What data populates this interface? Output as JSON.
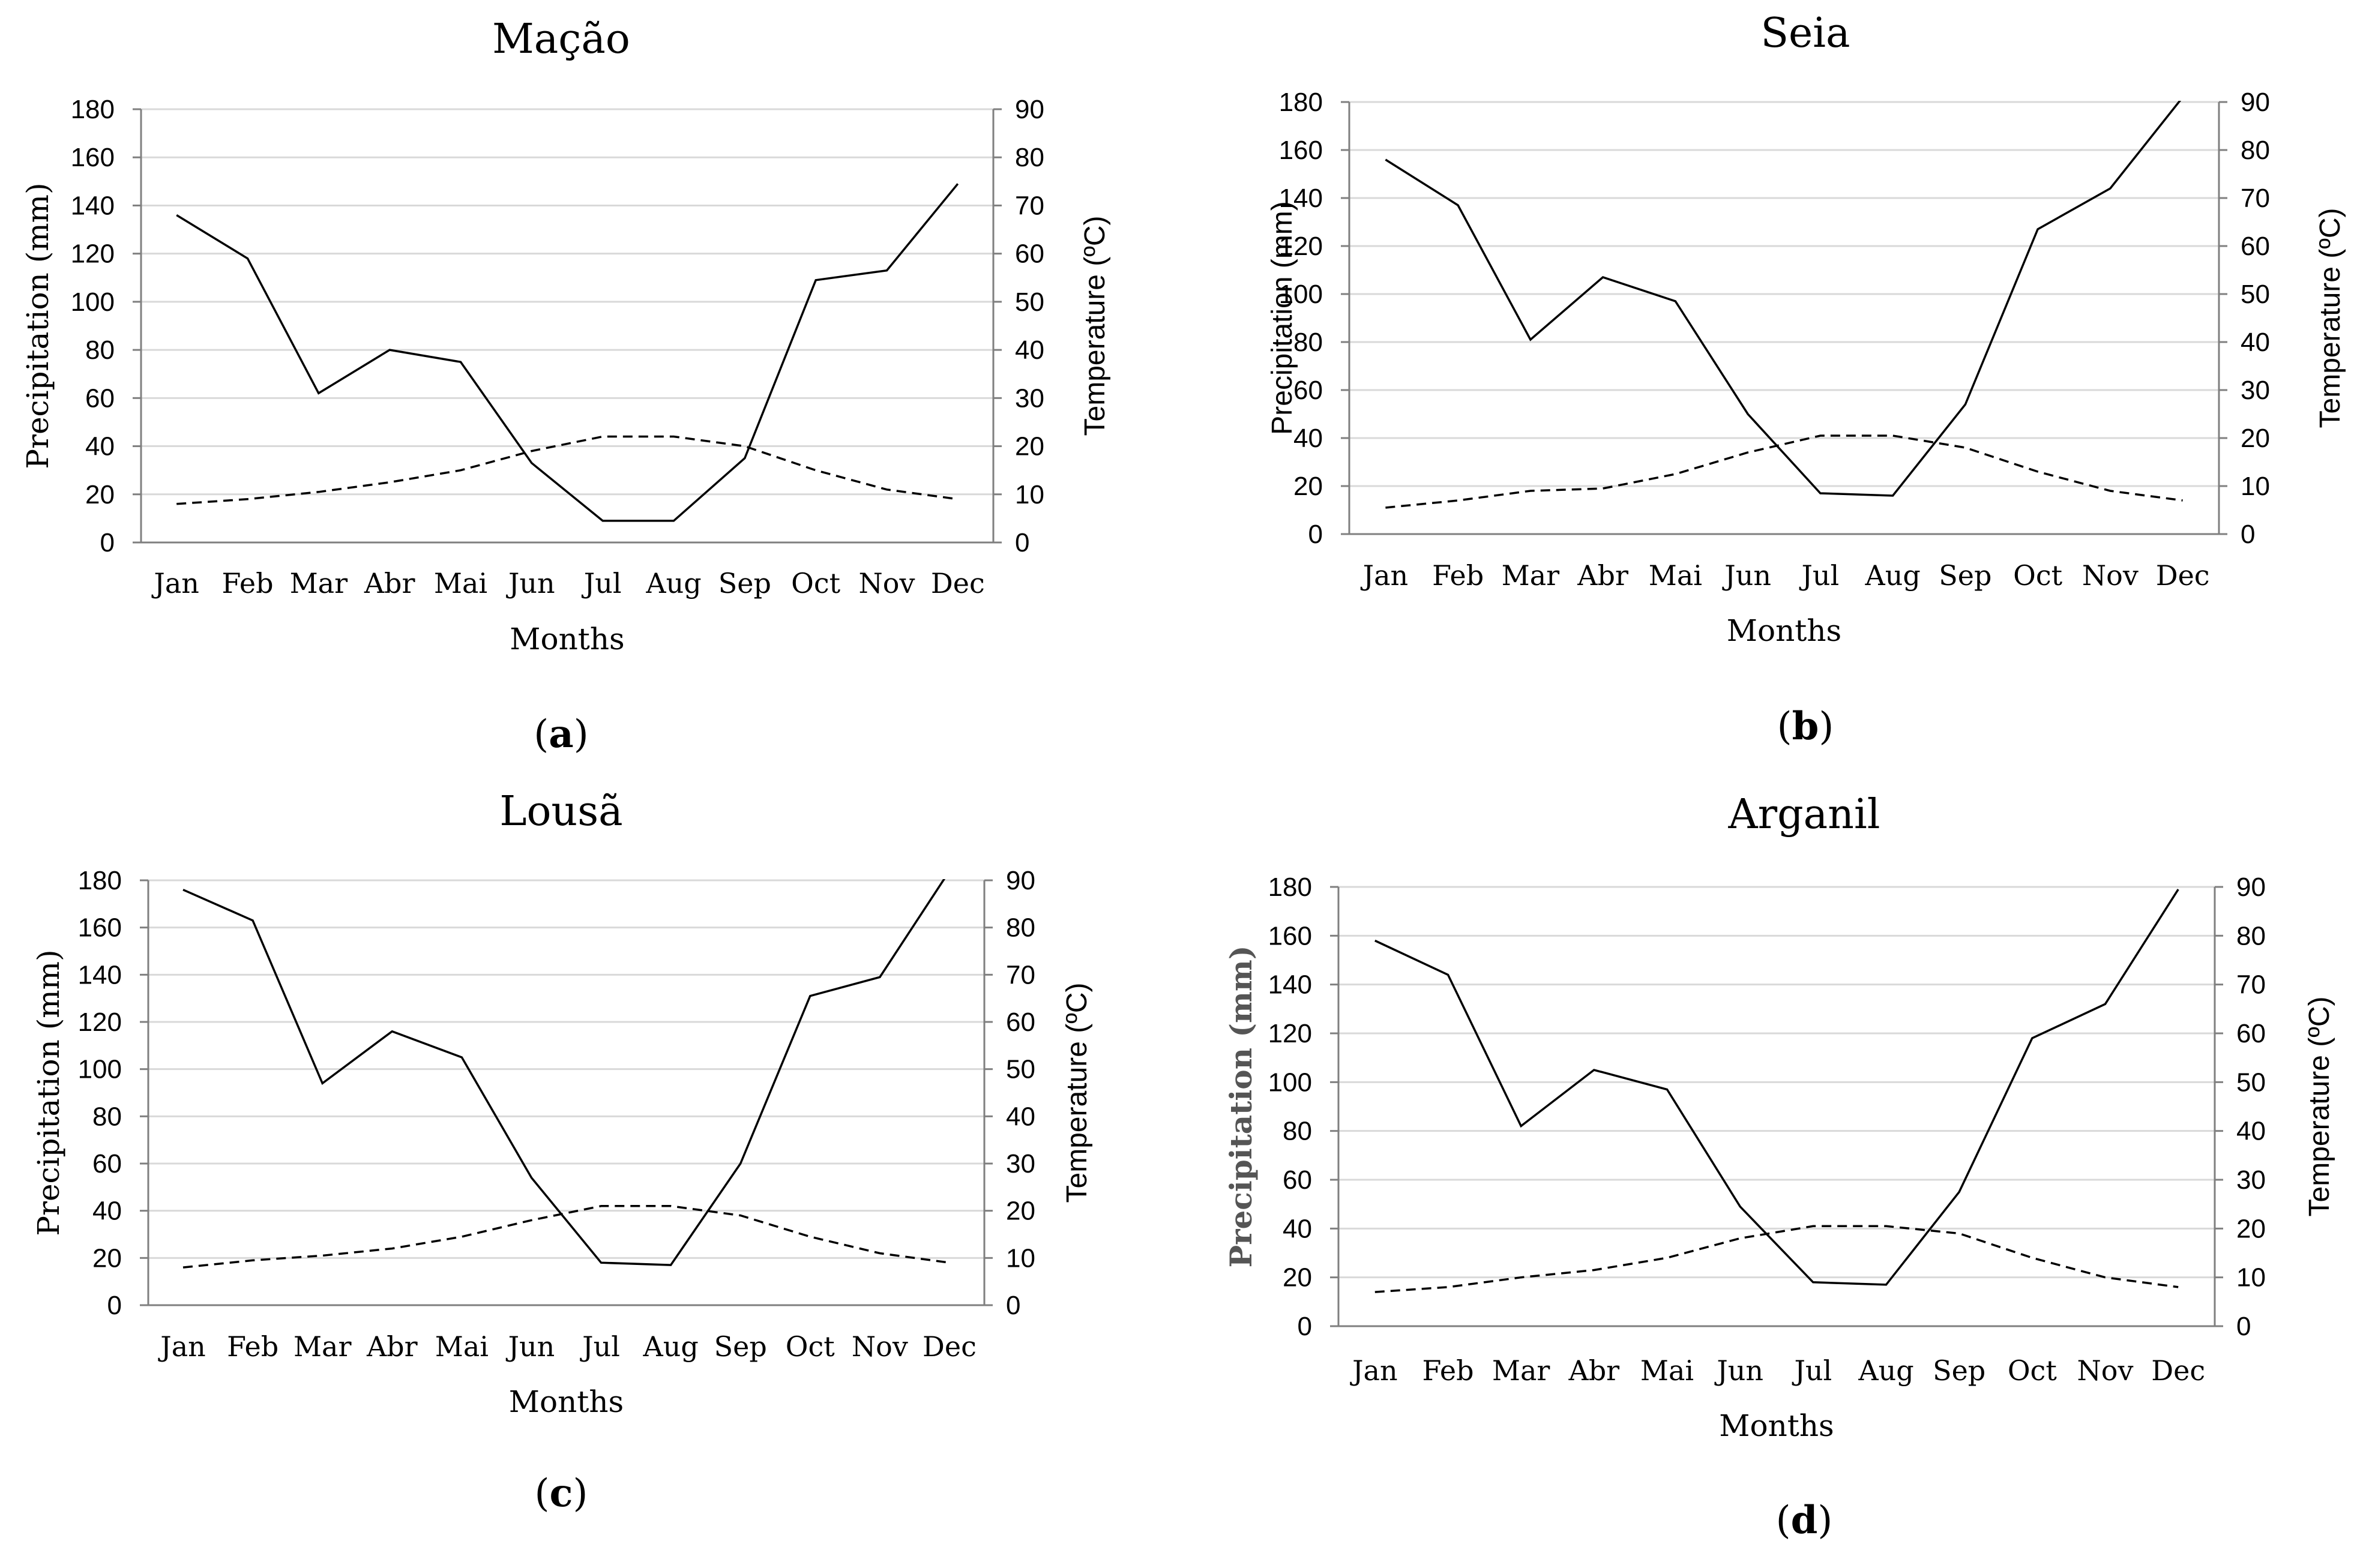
{
  "chart_data": [
    {
      "type": "line",
      "title": "Mação",
      "panel_label": "a",
      "xlabel": "Months",
      "ylabel": "Precipitation (mm)",
      "ylabel_right": "Temperature (ºC)",
      "ylim": [
        0,
        180
      ],
      "ylim_right": [
        0,
        90
      ],
      "yticks": [
        0,
        20,
        40,
        60,
        80,
        100,
        120,
        140,
        160,
        180
      ],
      "yticks_right": [
        0,
        10,
        20,
        30,
        40,
        50,
        60,
        70,
        80,
        90
      ],
      "categories": [
        "Jan",
        "Feb",
        "Mar",
        "Abr",
        "Mai",
        "Jun",
        "Jul",
        "Aug",
        "Sep",
        "Oct",
        "Nov",
        "Dec"
      ],
      "series": [
        {
          "name": "Precipitation",
          "axis": "left",
          "style": "solid",
          "values": [
            136,
            118,
            62,
            80,
            75,
            33,
            9,
            9,
            35,
            109,
            113,
            149
          ]
        },
        {
          "name": "Temperature",
          "axis": "right",
          "style": "dashed",
          "values": [
            8,
            9,
            10.5,
            12.5,
            15,
            19,
            22,
            22,
            20,
            15,
            11,
            9
          ]
        }
      ]
    },
    {
      "type": "line",
      "title": "Seia",
      "panel_label": "b",
      "xlabel": "Months",
      "ylabel": "Precipitation (mm)",
      "ylabel_right": "Temperature (ºC)",
      "ylim": [
        0,
        180
      ],
      "ylim_right": [
        0,
        90
      ],
      "yticks": [
        0,
        20,
        40,
        60,
        80,
        100,
        120,
        140,
        160,
        180
      ],
      "yticks_right": [
        0,
        10,
        20,
        30,
        40,
        50,
        60,
        70,
        80,
        90
      ],
      "categories": [
        "Jan",
        "Feb",
        "Mar",
        "Abr",
        "Mai",
        "Jun",
        "Jul",
        "Aug",
        "Sep",
        "Oct",
        "Nov",
        "Dec"
      ],
      "series": [
        {
          "name": "Precipitation",
          "axis": "left",
          "style": "solid",
          "values": [
            156,
            137,
            81,
            107,
            97,
            50,
            17,
            16,
            54,
            127,
            144,
            182
          ]
        },
        {
          "name": "Temperature",
          "axis": "right",
          "style": "dashed",
          "values": [
            5.5,
            7,
            9,
            9.5,
            12.5,
            17,
            20.5,
            20.5,
            18,
            13,
            9,
            7
          ]
        }
      ]
    },
    {
      "type": "line",
      "title": "Lousã",
      "panel_label": "c",
      "xlabel": "Months",
      "ylabel": "Precipitation (mm)",
      "ylabel_right": "Temperature (ºC)",
      "ylim": [
        0,
        180
      ],
      "ylim_right": [
        0,
        90
      ],
      "yticks": [
        0,
        20,
        40,
        60,
        80,
        100,
        120,
        140,
        160,
        180
      ],
      "yticks_right": [
        0,
        10,
        20,
        30,
        40,
        50,
        60,
        70,
        80,
        90
      ],
      "categories": [
        "Jan",
        "Feb",
        "Mar",
        "Abr",
        "Mai",
        "Jun",
        "Jul",
        "Aug",
        "Sep",
        "Oct",
        "Nov",
        "Dec"
      ],
      "series": [
        {
          "name": "Precipitation",
          "axis": "left",
          "style": "solid",
          "values": [
            176,
            163,
            94,
            116,
            105,
            54,
            18,
            17,
            60,
            131,
            139,
            184
          ]
        },
        {
          "name": "Temperature",
          "axis": "right",
          "style": "dashed",
          "values": [
            8,
            9.5,
            10.5,
            12,
            14.5,
            18,
            21,
            21,
            19,
            14.5,
            11,
            9
          ]
        }
      ]
    },
    {
      "type": "line",
      "title": "Arganil",
      "panel_label": "d",
      "xlabel": "Months",
      "ylabel": "Precipitation (mm)",
      "ylabel_right": "Temperature (ºC)",
      "ylim": [
        0,
        180
      ],
      "ylim_right": [
        0,
        90
      ],
      "yticks": [
        0,
        20,
        40,
        60,
        80,
        100,
        120,
        140,
        160,
        180
      ],
      "yticks_right": [
        0,
        10,
        20,
        30,
        40,
        50,
        60,
        70,
        80,
        90
      ],
      "categories": [
        "Jan",
        "Feb",
        "Mar",
        "Abr",
        "Mai",
        "Jun",
        "Jul",
        "Aug",
        "Sep",
        "Oct",
        "Nov",
        "Dec"
      ],
      "series": [
        {
          "name": "Precipitation",
          "axis": "left",
          "style": "solid",
          "values": [
            158,
            144,
            82,
            105,
            97,
            49,
            18,
            17,
            55,
            118,
            132,
            179
          ]
        },
        {
          "name": "Temperature",
          "axis": "right",
          "style": "dashed",
          "values": [
            7,
            8,
            10,
            11.5,
            14,
            18,
            20.5,
            20.5,
            19,
            14,
            10,
            8
          ]
        }
      ]
    }
  ]
}
